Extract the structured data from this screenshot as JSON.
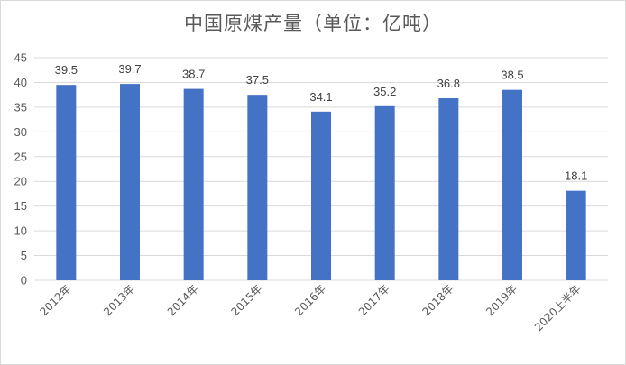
{
  "chart_data": {
    "type": "bar",
    "title": "中国原煤产量（单位：亿吨）",
    "categories": [
      "2012年",
      "2013年",
      "2014年",
      "2015年",
      "2016年",
      "2017年",
      "2018年",
      "2019年",
      "2020上半年"
    ],
    "values": [
      39.5,
      39.7,
      38.7,
      37.5,
      34.1,
      35.2,
      36.8,
      38.5,
      18.1
    ],
    "data_labels": [
      "39.5",
      "39.7",
      "38.7",
      "37.5",
      "34.1",
      "35.2",
      "36.8",
      "38.5",
      "18.1"
    ],
    "y_ticks": [
      "0",
      "5",
      "10",
      "15",
      "20",
      "25",
      "30",
      "35",
      "40",
      "45"
    ],
    "ylim": [
      0,
      45
    ],
    "grid": true,
    "legend": "none",
    "bar_color": "#4472c4",
    "grid_color": "#d9d9d9"
  }
}
